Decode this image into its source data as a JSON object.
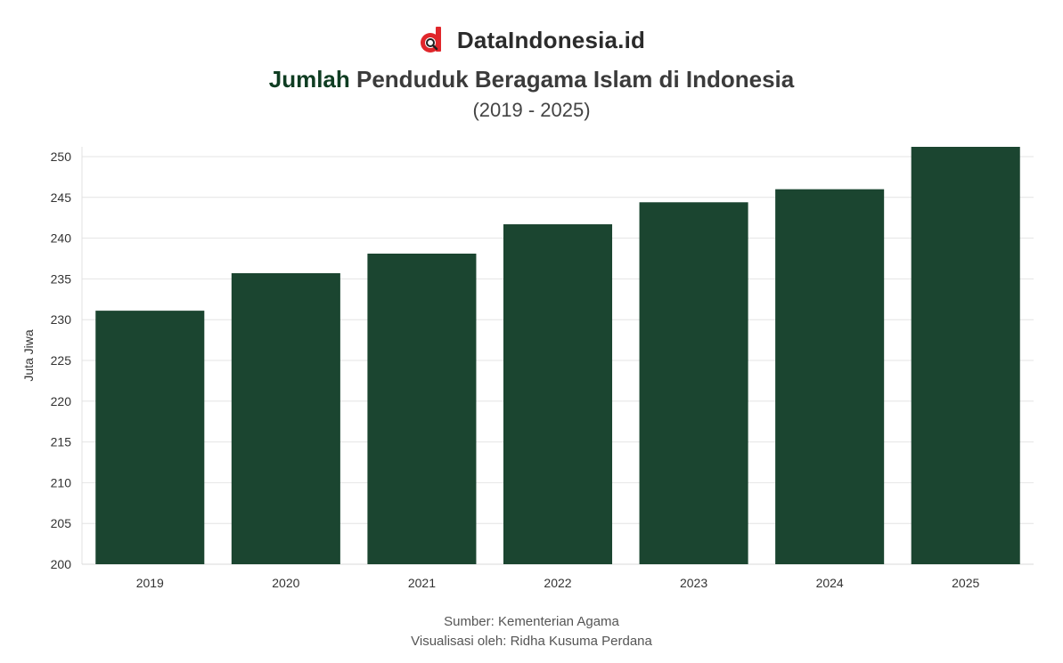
{
  "brand": {
    "name": "DataIndonesia.id",
    "logo_icon": "dataindonesia-logo-icon",
    "logo_colors": {
      "primary": "#e0262b",
      "lens": "#1f1f1f"
    }
  },
  "title": {
    "highlight": "Jumlah",
    "rest": "Penduduk Beragama Islam di Indonesia",
    "highlight_color": "#0f3d22"
  },
  "subtitle": "(2019 - 2025)",
  "footer": {
    "source": "Sumber: Kementerian Agama",
    "credit": "Visualisasi oleh: Ridha Kusuma Perdana"
  },
  "chart_data": {
    "type": "bar",
    "categories": [
      "2019",
      "2020",
      "2021",
      "2022",
      "2023",
      "2024",
      "2025"
    ],
    "values": [
      231.1,
      235.7,
      238.1,
      241.7,
      244.4,
      246.0,
      251.2
    ],
    "title": "",
    "xlabel": "",
    "ylabel": "Juta Jiwa",
    "ylim": [
      200,
      251.2
    ],
    "yticks": [
      200,
      205,
      210,
      215,
      220,
      225,
      230,
      235,
      240,
      245,
      250
    ],
    "grid": true,
    "bar_color": "#1b4530"
  }
}
